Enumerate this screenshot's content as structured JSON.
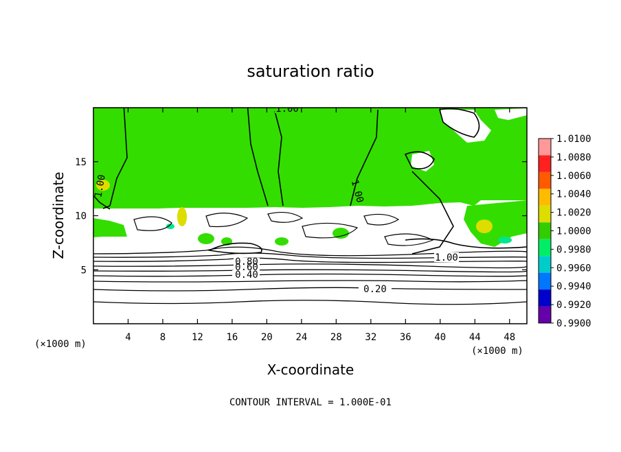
{
  "chart_data": {
    "type": "heatmap",
    "title": "saturation ratio",
    "xlabel": "X-coordinate",
    "ylabel": "Z-coordinate",
    "x_unit": "(×1000 m)",
    "x_unit_right": "(×1000 m)",
    "xlim": [
      0,
      50
    ],
    "ylim": [
      0,
      20
    ],
    "x_ticks": [
      4,
      8,
      12,
      16,
      20,
      24,
      28,
      32,
      36,
      40,
      44,
      48
    ],
    "y_ticks": [
      5,
      10,
      15
    ],
    "footer": "CONTOUR INTERVAL = 1.000E-01",
    "contour_labels": [
      "1.00",
      "1.00",
      "1.00",
      "1.00",
      "0.80",
      "0.60",
      "0.40",
      "0.20"
    ],
    "colorbar": {
      "ticks": [
        "1.0100",
        "1.0080",
        "1.0060",
        "1.0040",
        "1.0020",
        "1.0000",
        "0.9980",
        "0.9960",
        "0.9940",
        "0.9920",
        "0.9900"
      ],
      "colors": [
        "#ff9999",
        "#ff2020",
        "#ff5a00",
        "#ffbb00",
        "#dddd00",
        "#33cc00",
        "#00ee66",
        "#00cccc",
        "#0077ff",
        "#0000cc",
        "#6600aa"
      ]
    },
    "field_colors": {
      "saturated": "#33dd00",
      "subsaturated": "#ffffff",
      "near_saturated": "#00e68c",
      "supersaturated": "#dddd00"
    }
  }
}
